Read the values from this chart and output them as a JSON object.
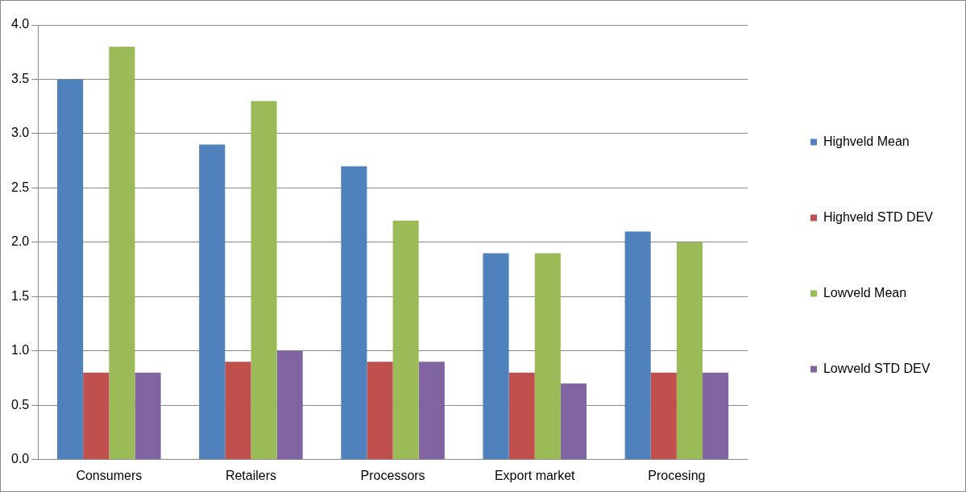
{
  "chart_data": {
    "type": "bar",
    "categories": [
      "Consumers",
      "Retailers",
      "Processors",
      "Export market",
      "Procesing"
    ],
    "series": [
      {
        "name": "Highveld Mean",
        "color": "#4f81bd",
        "values": [
          3.5,
          2.9,
          2.7,
          1.9,
          2.1
        ]
      },
      {
        "name": "Highveld STD DEV",
        "color": "#c0504d",
        "values": [
          0.8,
          0.9,
          0.9,
          0.8,
          0.8
        ]
      },
      {
        "name": "Lowveld Mean",
        "color": "#9bbb59",
        "values": [
          3.8,
          3.3,
          2.2,
          1.9,
          2.0
        ]
      },
      {
        "name": "Lowveld STD DEV",
        "color": "#8064a2",
        "values": [
          0.8,
          1.0,
          0.9,
          0.7,
          0.8
        ]
      }
    ],
    "ylim": [
      0,
      4
    ],
    "yticks": [
      {
        "value": 0,
        "label": "0.0"
      },
      0.5,
      {
        "value": 1,
        "label": "1.0"
      },
      1.5,
      {
        "value": 2,
        "label": "2.0"
      },
      2.5,
      {
        "value": 3,
        "label": "3.0"
      },
      3.5,
      {
        "value": 4,
        "label": "4.0"
      }
    ],
    "grid": "y",
    "legend": "right"
  }
}
